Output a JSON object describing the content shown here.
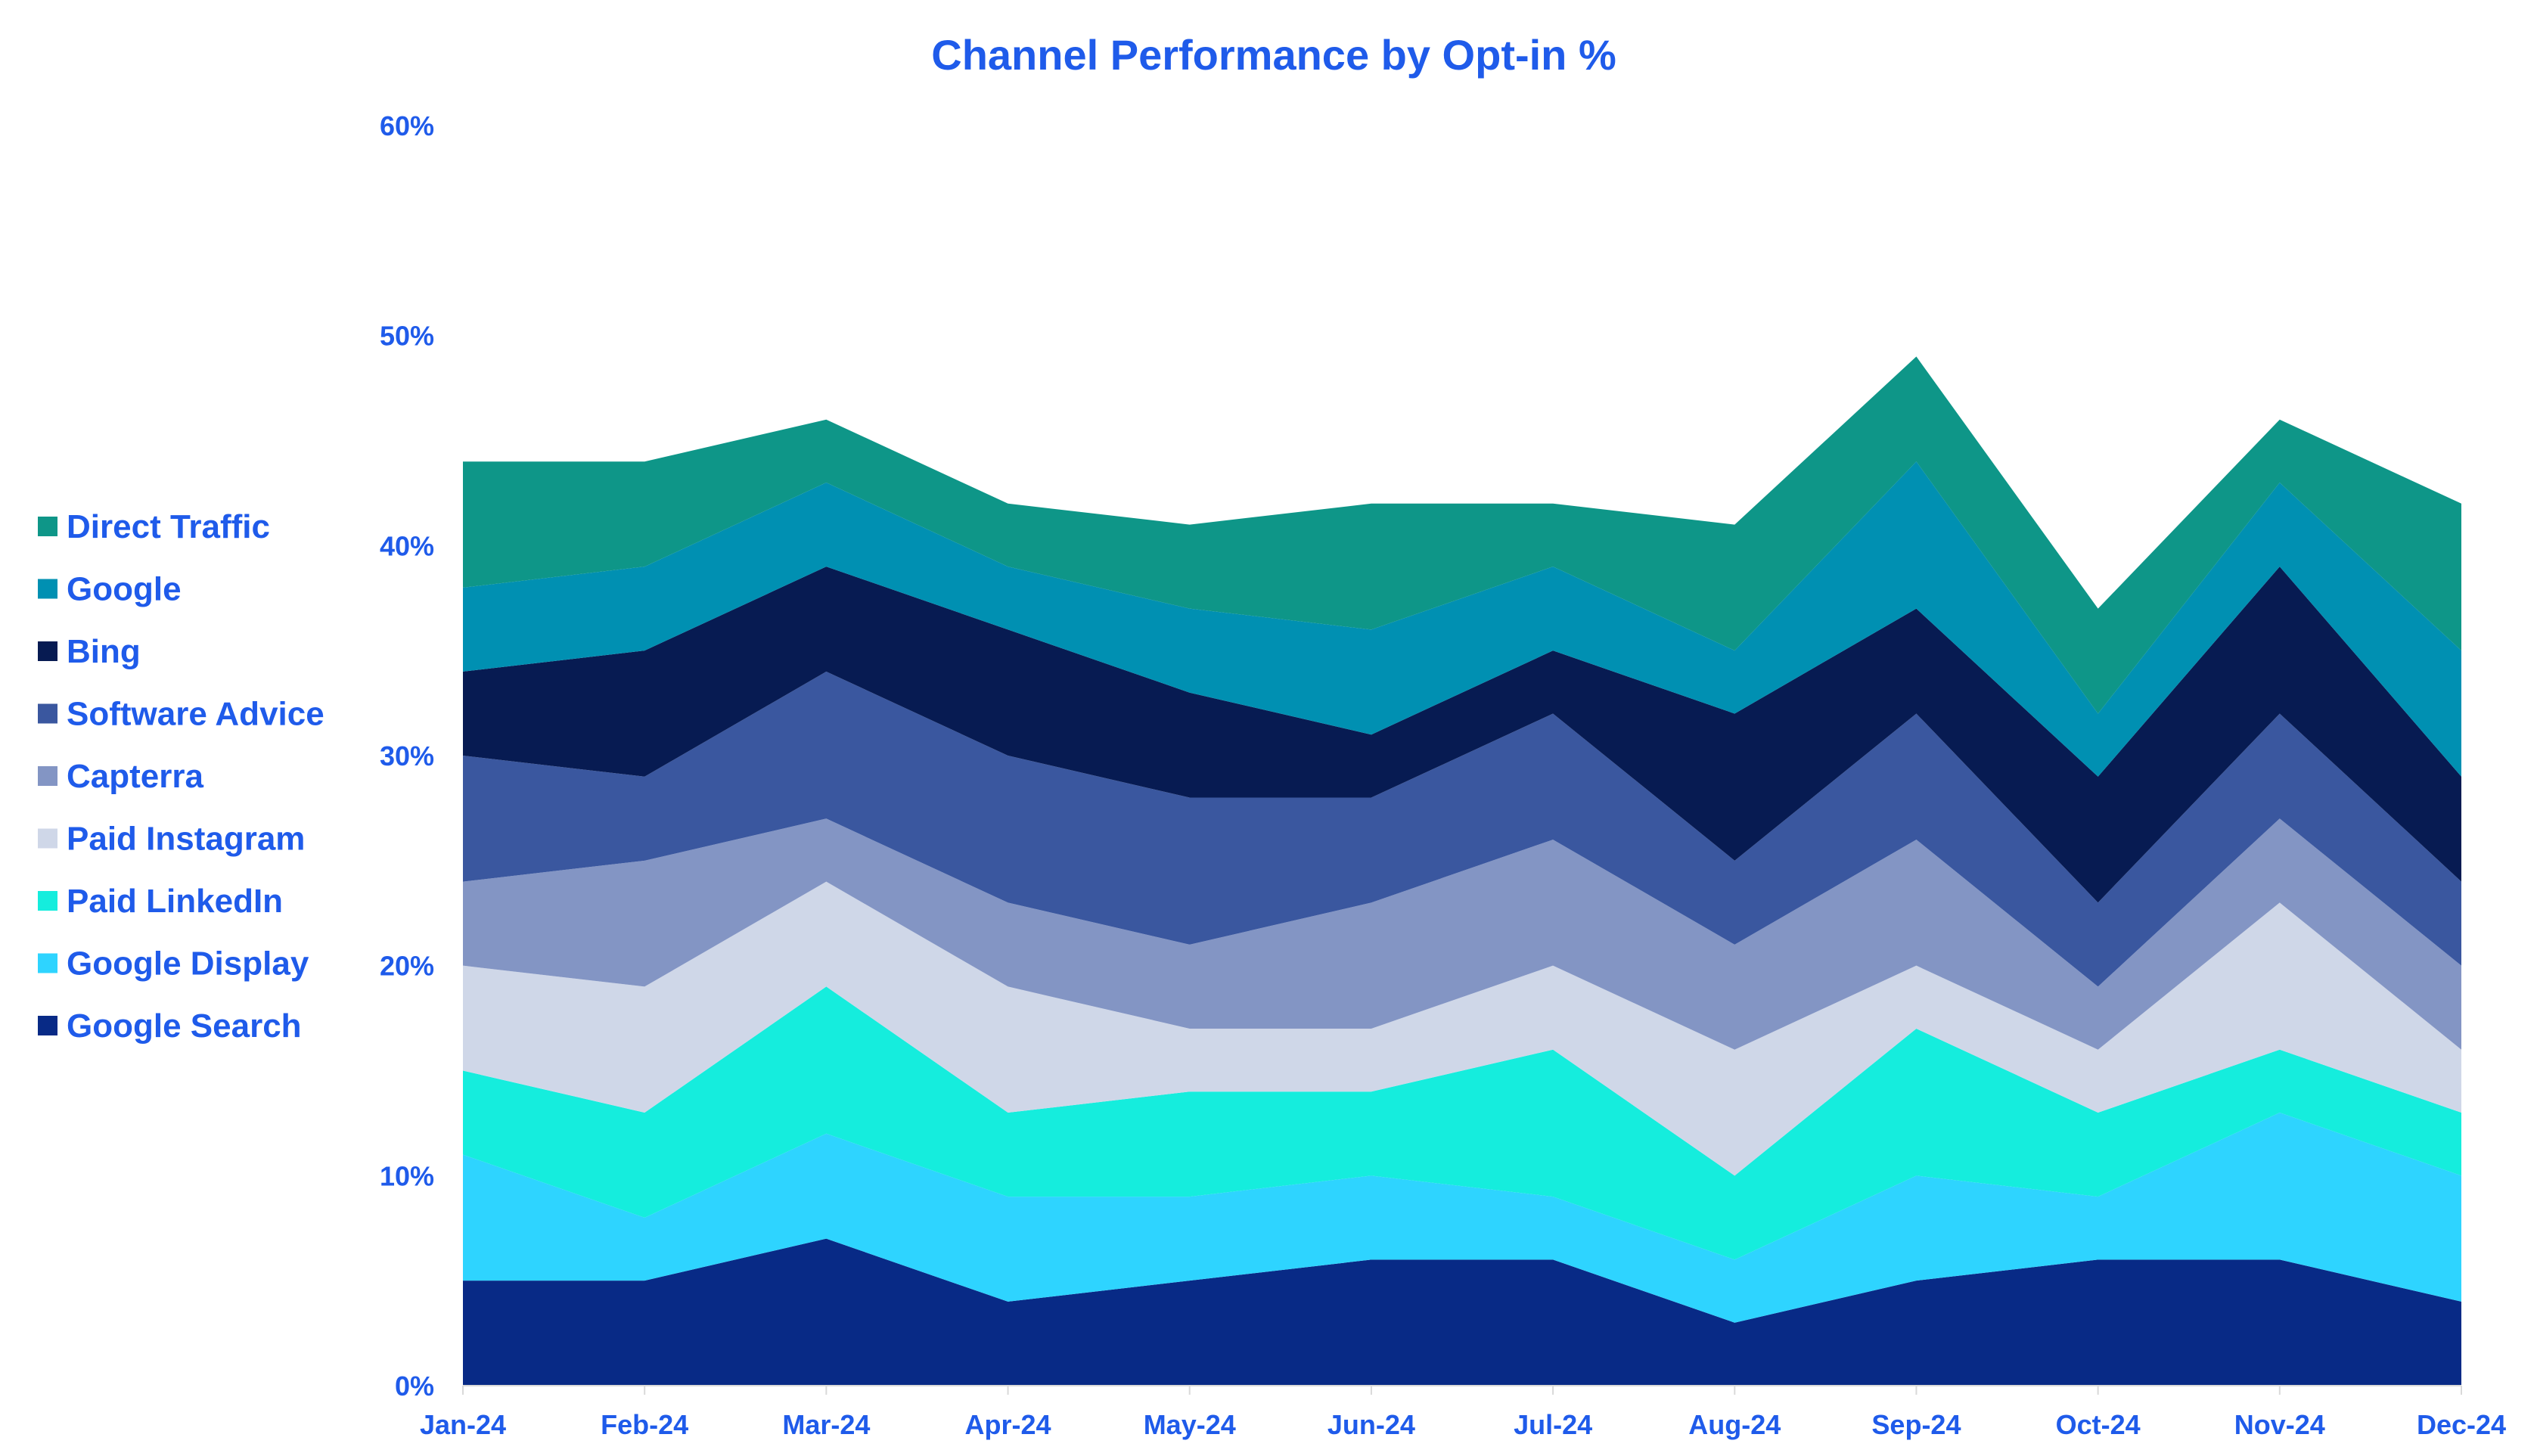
{
  "chart_data": {
    "type": "area",
    "stacked": true,
    "title": "Channel Performance by Opt-in %",
    "xlabel": "",
    "ylabel": "",
    "ylim": [
      0,
      60
    ],
    "y_ticks": [
      "0%",
      "10%",
      "20%",
      "30%",
      "40%",
      "50%",
      "60%"
    ],
    "y_tick_values": [
      0,
      10,
      20,
      30,
      40,
      50,
      60
    ],
    "categories": [
      "Jan-24",
      "Feb-24",
      "Mar-24",
      "Apr-24",
      "May-24",
      "Jun-24",
      "Jul-24",
      "Aug-24",
      "Sep-24",
      "Oct-24",
      "Nov-24",
      "Dec-24"
    ],
    "grid": false,
    "legend_position": "left",
    "series": [
      {
        "name": "Google Search",
        "color": "#082A86",
        "values": [
          5,
          5,
          7,
          4,
          5,
          6,
          6,
          3,
          5,
          6,
          6,
          4
        ]
      },
      {
        "name": "Google Display",
        "color": "#2ED4FF",
        "values": [
          6,
          3,
          5,
          5,
          4,
          4,
          3,
          3,
          5,
          3,
          7,
          6
        ]
      },
      {
        "name": "Paid LinkedIn",
        "color": "#15EDDD",
        "values": [
          4,
          5,
          7,
          4,
          5,
          4,
          7,
          4,
          7,
          4,
          3,
          3
        ]
      },
      {
        "name": "Paid Instagram",
        "color": "#CFD7E8",
        "values": [
          5,
          6,
          5,
          6,
          3,
          3,
          4,
          6,
          3,
          3,
          7,
          3
        ]
      },
      {
        "name": "Capterra",
        "color": "#8395C4",
        "values": [
          4,
          6,
          3,
          4,
          4,
          6,
          6,
          5,
          6,
          3,
          4,
          4
        ]
      },
      {
        "name": "Software Advice",
        "color": "#3A579F",
        "values": [
          6,
          4,
          7,
          7,
          7,
          5,
          6,
          4,
          6,
          4,
          5,
          4
        ]
      },
      {
        "name": "Bing",
        "color": "#071B52",
        "values": [
          4,
          6,
          5,
          6,
          5,
          3,
          3,
          7,
          5,
          6,
          7,
          5
        ]
      },
      {
        "name": "Google",
        "color": "#0090B2",
        "values": [
          4,
          4,
          4,
          3,
          4,
          5,
          4,
          3,
          7,
          3,
          4,
          6
        ]
      },
      {
        "name": "Direct Traffic",
        "color": "#0E9688",
        "values": [
          6,
          5,
          3,
          3,
          4,
          6,
          3,
          6,
          5,
          5,
          3,
          7
        ]
      }
    ],
    "legend_order": [
      "Direct Traffic",
      "Google",
      "Bing",
      "Software Advice",
      "Capterra",
      "Paid Instagram",
      "Paid LinkedIn",
      "Google Display",
      "Google Search"
    ]
  }
}
